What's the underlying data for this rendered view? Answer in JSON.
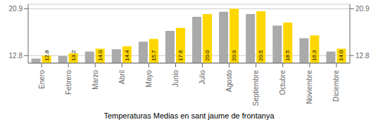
{
  "chart_data": {
    "type": "bar",
    "title": "Temperaturas Medias en sant jaume de frontanya",
    "categories": [
      "Enero",
      "Febrero",
      "Marzo",
      "Abril",
      "Mayo",
      "Junio",
      "Julio",
      "Agosto",
      "Septiembre",
      "Octubre",
      "Noviembre",
      "Diciembre"
    ],
    "series": [
      {
        "color": "#AAAAAA",
        "values": [
          12.3,
          12.7,
          13.5,
          13.9,
          15.2,
          17.1,
          19.5,
          20.4,
          20.0,
          18.0,
          15.8,
          13.5
        ]
      },
      {
        "color": "#FFD700",
        "values": [
          12.8,
          13.2,
          14.0,
          14.4,
          15.7,
          17.6,
          20.0,
          20.9,
          20.5,
          18.5,
          16.3,
          14.0
        ],
        "data_labels": true,
        "value_labels": [
          "12.8",
          "13.2",
          "14.0",
          "14.4",
          "15.7",
          "17.6",
          "20.0",
          "20.9",
          "20.5",
          "18.5",
          "16.3",
          "14.0"
        ]
      }
    ],
    "ylim": [
      11.5,
      21.7
    ],
    "yticks": [
      12.8,
      20.9
    ],
    "grid": true
  }
}
